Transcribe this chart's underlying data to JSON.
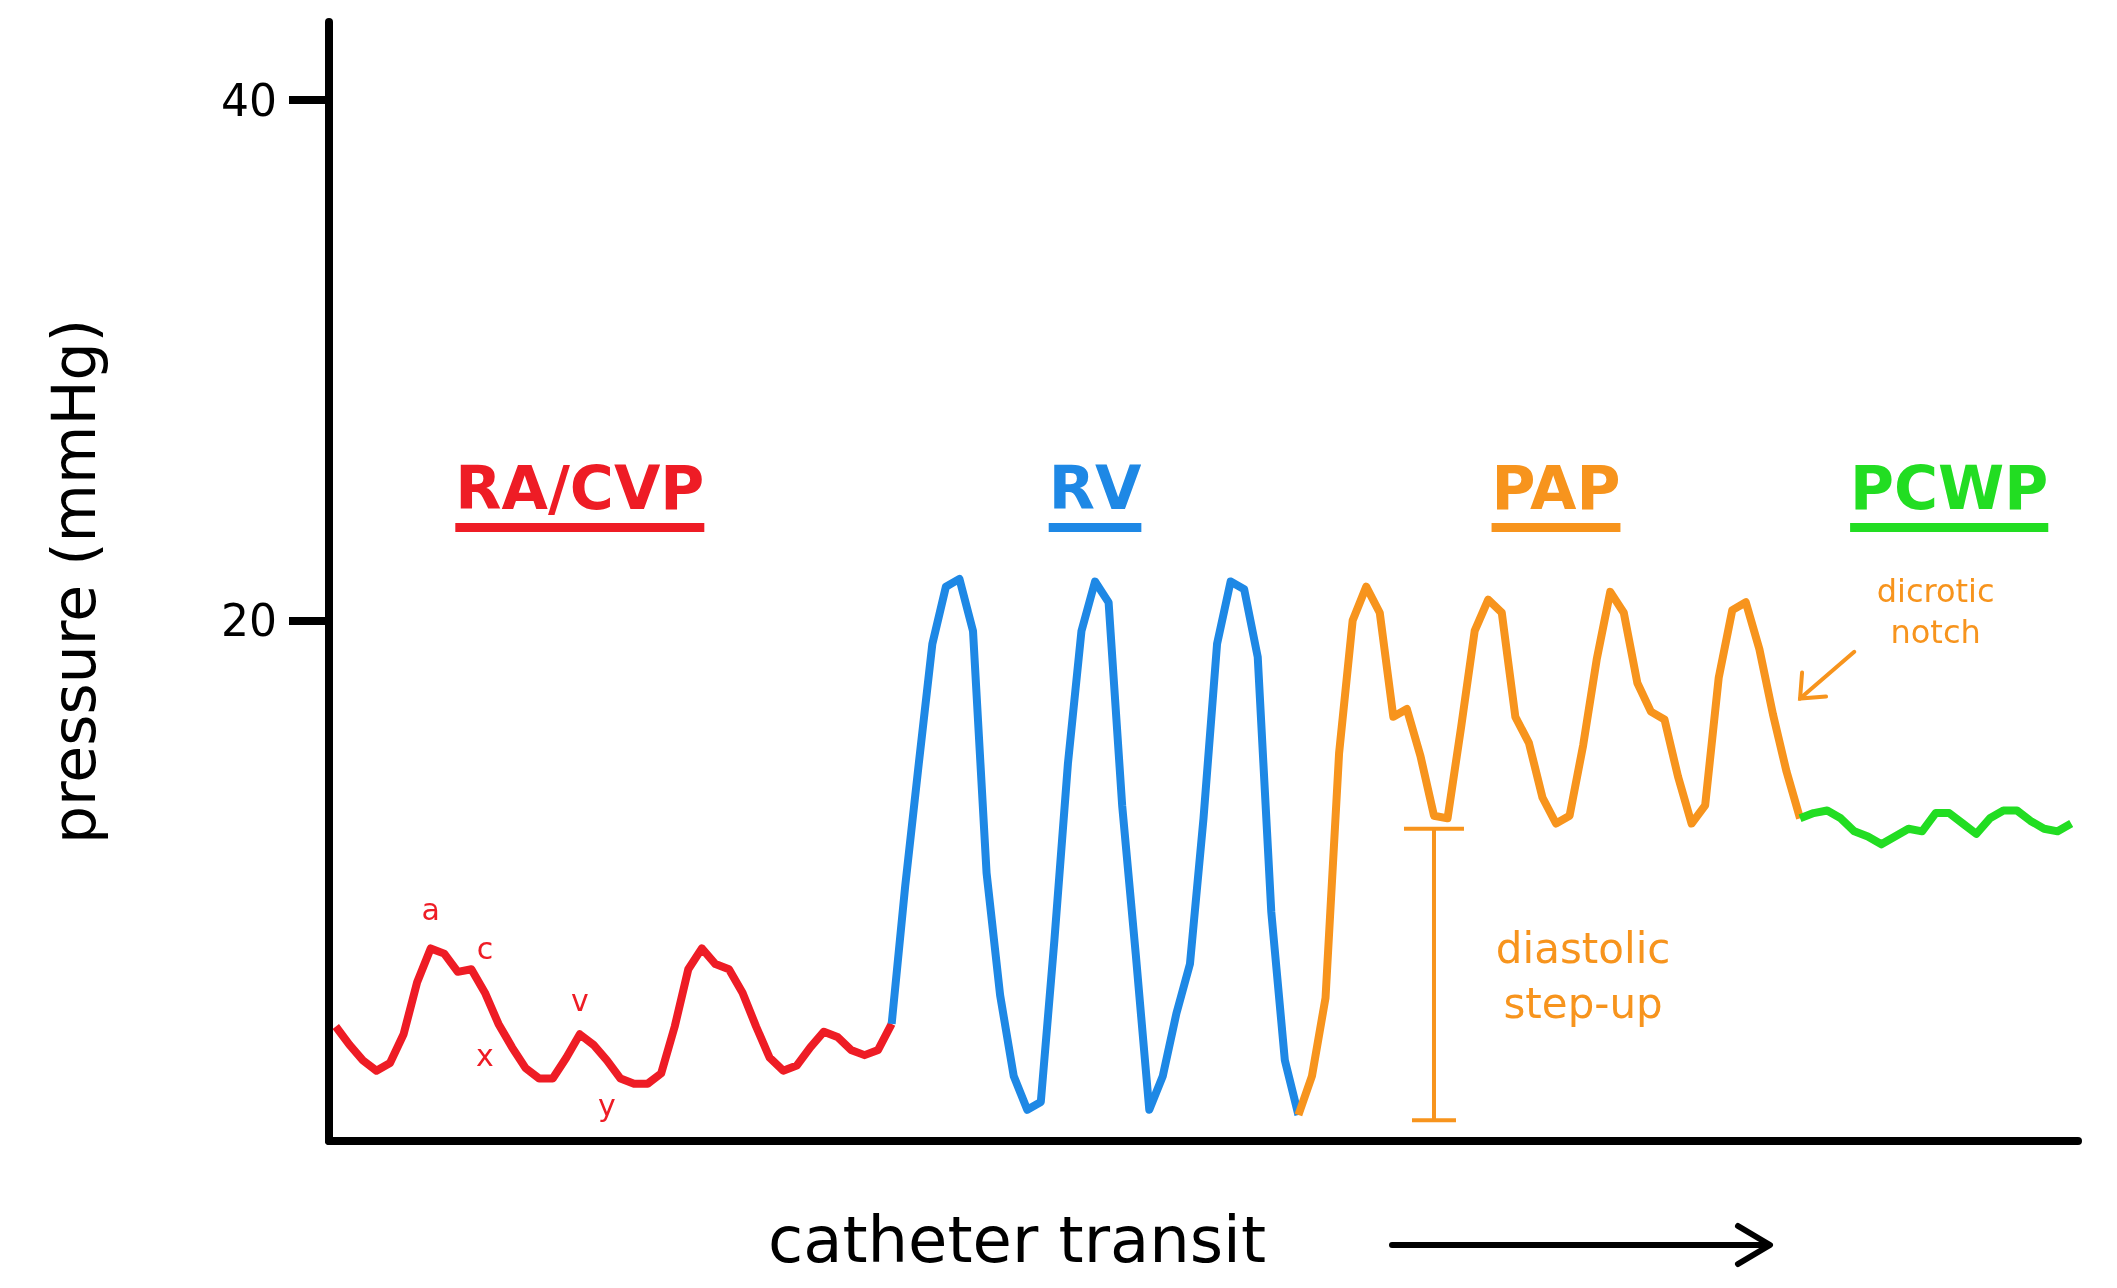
{
  "chart_data": {
    "type": "line",
    "xlabel": "catheter transit",
    "ylabel": "pressure (mmHg)",
    "ylim": [
      0,
      43
    ],
    "yticks": [
      20,
      40
    ],
    "tick_labels": "y",
    "grid": false,
    "legend": false,
    "marker": "none",
    "categories": [
      null,
      null,
      null,
      null,
      null,
      null,
      null,
      null,
      null,
      null,
      null,
      null,
      null,
      null,
      null,
      null,
      null,
      null,
      null,
      null,
      null,
      null,
      null,
      null,
      null,
      null,
      null,
      null,
      null,
      null,
      null,
      null,
      null,
      null,
      null,
      null,
      null,
      null,
      null,
      null,
      null,
      null,
      null,
      null,
      null,
      null,
      null,
      null,
      null,
      null,
      null,
      null,
      null,
      null,
      null,
      null,
      null,
      null,
      null,
      null,
      null,
      null,
      null,
      null,
      null,
      null,
      null,
      null,
      null,
      null,
      null,
      null,
      null,
      null,
      null,
      null,
      null,
      null,
      null,
      null,
      null,
      null,
      null,
      null,
      null,
      null,
      null,
      null,
      null,
      null,
      null,
      null,
      null,
      null,
      null,
      null,
      null,
      null,
      null,
      null,
      null,
      null,
      null,
      null,
      null,
      null,
      null,
      null,
      null,
      null,
      null,
      null,
      null,
      null,
      null,
      null,
      null,
      null,
      null,
      null,
      null,
      null,
      null,
      null,
      null,
      null,
      null,
      null,
      null
    ],
    "series": [
      {
        "name": "RA/CVP",
        "color": "#ee1c25",
        "values": [
          4.4,
          3.7,
          3.1,
          2.7,
          3.0,
          4.1,
          6.1,
          7.4,
          7.2,
          6.5,
          6.6,
          5.7,
          4.5,
          3.6,
          2.8,
          2.4,
          2.4,
          3.2,
          4.1,
          3.7,
          3.1,
          2.4,
          2.2,
          2.2,
          2.6,
          4.4,
          6.6,
          7.4,
          6.8,
          6.6,
          5.7,
          4.4,
          3.2,
          2.7,
          2.9,
          3.6,
          4.2,
          4.0,
          3.5,
          3.3,
          3.5,
          4.5,
          null,
          null,
          null,
          null,
          null,
          null,
          null,
          null,
          null,
          null,
          null,
          null,
          null,
          null,
          null,
          null,
          null,
          null,
          null,
          null,
          null,
          null,
          null,
          null,
          null,
          null,
          null,
          null,
          null,
          null,
          null,
          null,
          null,
          null,
          null,
          null,
          null,
          null,
          null,
          null,
          null,
          null,
          null,
          null,
          null,
          null,
          null,
          null,
          null,
          null,
          null,
          null,
          null,
          null,
          null,
          null,
          null,
          null,
          null,
          null,
          null,
          null,
          null,
          null,
          null,
          null,
          null,
          null,
          null,
          null,
          null,
          null,
          null,
          null,
          null,
          null,
          null,
          null,
          null,
          null,
          null,
          null,
          null,
          null,
          null,
          null,
          null
        ]
      },
      {
        "name": "RV",
        "color": "#1e88e5",
        "values": [
          null,
          null,
          null,
          null,
          null,
          null,
          null,
          null,
          null,
          null,
          null,
          null,
          null,
          null,
          null,
          null,
          null,
          null,
          null,
          null,
          null,
          null,
          null,
          null,
          null,
          null,
          null,
          null,
          null,
          null,
          null,
          null,
          null,
          null,
          null,
          null,
          null,
          null,
          null,
          null,
          null,
          4.5,
          9.8,
          14.5,
          19.1,
          21.3,
          21.6,
          19.6,
          10.3,
          5.6,
          2.5,
          1.2,
          1.5,
          7.7,
          14.5,
          19.6,
          21.5,
          20.7,
          12.9,
          7.2,
          1.2,
          2.5,
          4.9,
          6.8,
          12.4,
          19.1,
          21.5,
          21.2,
          18.6,
          8.8,
          3.1,
          1.0,
          null,
          null,
          null,
          null,
          null,
          null,
          null,
          null,
          null,
          null,
          null,
          null,
          null,
          null,
          null,
          null,
          null,
          null,
          null,
          null,
          null,
          null,
          null,
          null,
          null,
          null,
          null,
          null,
          null,
          null,
          null,
          null,
          null,
          null,
          null,
          null,
          null,
          null,
          null,
          null,
          null,
          null,
          null,
          null,
          null,
          null,
          null,
          null,
          null,
          null,
          null,
          null,
          null,
          null,
          null,
          null,
          null
        ]
      },
      {
        "name": "PAP",
        "color": "#f7941d",
        "values": [
          null,
          null,
          null,
          null,
          null,
          null,
          null,
          null,
          null,
          null,
          null,
          null,
          null,
          null,
          null,
          null,
          null,
          null,
          null,
          null,
          null,
          null,
          null,
          null,
          null,
          null,
          null,
          null,
          null,
          null,
          null,
          null,
          null,
          null,
          null,
          null,
          null,
          null,
          null,
          null,
          null,
          null,
          null,
          null,
          null,
          null,
          null,
          null,
          null,
          null,
          null,
          null,
          null,
          null,
          null,
          null,
          null,
          null,
          null,
          null,
          null,
          null,
          null,
          null,
          null,
          null,
          null,
          null,
          null,
          null,
          null,
          1.0,
          2.5,
          5.5,
          14.9,
          20.0,
          21.3,
          20.3,
          16.3,
          16.6,
          14.8,
          12.5,
          12.4,
          15.9,
          19.6,
          20.8,
          20.3,
          16.3,
          15.3,
          13.2,
          12.2,
          12.5,
          15.2,
          18.5,
          21.1,
          20.3,
          17.6,
          16.5,
          16.2,
          14.0,
          12.2,
          12.9,
          17.8,
          20.4,
          20.7,
          18.9,
          16.4,
          14.2,
          12.4,
          null,
          null,
          null,
          null,
          null,
          null,
          null,
          null,
          null,
          null,
          null,
          null,
          null,
          null,
          null,
          null,
          null,
          null,
          null,
          null
        ]
      },
      {
        "name": "PCWP",
        "color": "#22dd22",
        "values": [
          null,
          null,
          null,
          null,
          null,
          null,
          null,
          null,
          null,
          null,
          null,
          null,
          null,
          null,
          null,
          null,
          null,
          null,
          null,
          null,
          null,
          null,
          null,
          null,
          null,
          null,
          null,
          null,
          null,
          null,
          null,
          null,
          null,
          null,
          null,
          null,
          null,
          null,
          null,
          null,
          null,
          null,
          null,
          null,
          null,
          null,
          null,
          null,
          null,
          null,
          null,
          null,
          null,
          null,
          null,
          null,
          null,
          null,
          null,
          null,
          null,
          null,
          null,
          null,
          null,
          null,
          null,
          null,
          null,
          null,
          null,
          null,
          null,
          null,
          null,
          null,
          null,
          null,
          null,
          null,
          null,
          null,
          null,
          null,
          null,
          null,
          null,
          null,
          null,
          null,
          null,
          null,
          null,
          null,
          null,
          null,
          null,
          null,
          null,
          null,
          null,
          null,
          null,
          null,
          null,
          null,
          null,
          null,
          12.4,
          12.6,
          12.7,
          12.4,
          11.9,
          11.7,
          11.4,
          11.7,
          12.0,
          11.9,
          12.6,
          12.6,
          12.2,
          11.8,
          12.4,
          12.7,
          12.7,
          12.3,
          12.0,
          11.9,
          12.2
        ]
      }
    ],
    "annotations": [
      "a",
      "c",
      "x",
      "v",
      "y",
      "dicrotic notch",
      "diastolic step-up"
    ]
  }
}
